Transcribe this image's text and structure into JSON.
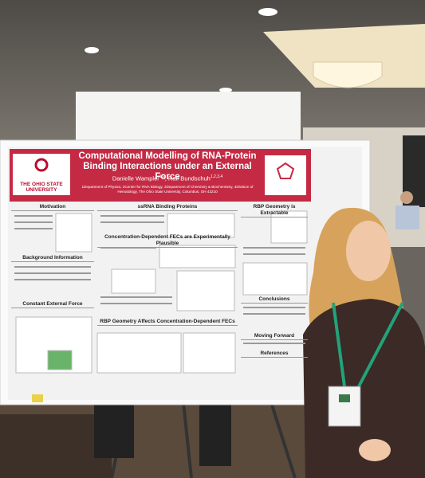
{
  "poster": {
    "logo": "THE OHIO STATE UNIVERSITY",
    "title": "Computational Modelling of RNA-Protein Binding Interactions under an External Force",
    "authors": [
      {
        "name": "Danielle Wampler",
        "sup": "1,2"
      },
      {
        "name": "Ralf Bundschuh",
        "sup": "1,2,3,4"
      }
    ],
    "affiliations": "1Department of Physics, 2Center for RNA Biology, 3Department of Chemistry & Biochemistry, 4Division of Hematology, The Ohio State University, Columbus, OH 43210",
    "sections": [
      "Motivation",
      "Background Information",
      "Constant External Force",
      "ssRNA Binding Proteins",
      "Concentration-Dependent FECs are Experimentally Plausible",
      "RBP Geometry Affects Concentration-Dependent FECs",
      "RBP Geometry is Extractable",
      "Conclusions",
      "Moving Forward",
      "References"
    ]
  }
}
